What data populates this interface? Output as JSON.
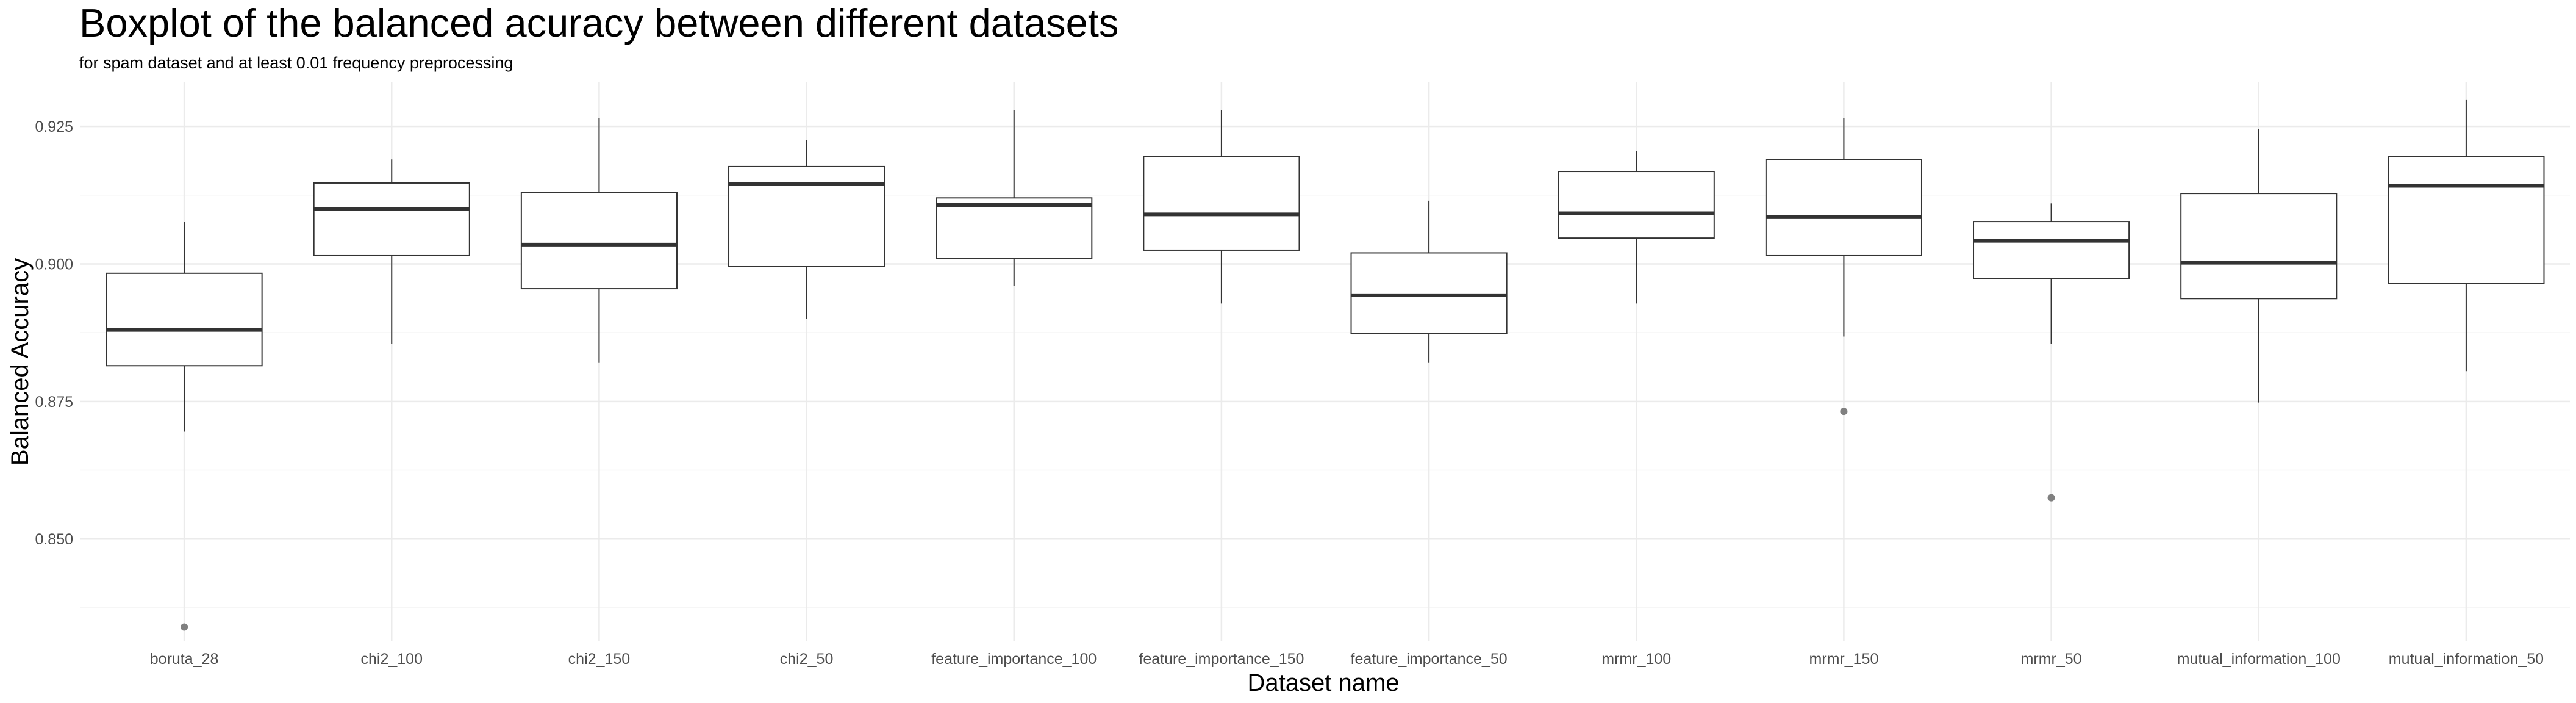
{
  "chart_data": {
    "type": "boxplot",
    "title": "Boxplot of the balanced acuracy between different datasets",
    "subtitle": "for spam dataset and at least 0.01 frequency preprocessing",
    "xlabel": "Dataset name",
    "ylabel": "Balanced Accuracy",
    "ylim": [
      0.8315,
      0.933
    ],
    "y_ticks": [
      0.85,
      0.875,
      0.9,
      0.925
    ],
    "y_tick_labels": [
      "0.850",
      "0.875",
      "0.900",
      "0.925"
    ],
    "grid": true,
    "categories": [
      "boruta_28",
      "chi2_100",
      "chi2_150",
      "chi2_50",
      "feature_importance_100",
      "feature_importance_150",
      "feature_importance_50",
      "mrmr_100",
      "mrmr_150",
      "mrmr_50",
      "mutual_information_100",
      "mutual_information_50"
    ],
    "boxes": [
      {
        "min": 0.8695,
        "q1": 0.8815,
        "median": 0.888,
        "q3": 0.8983,
        "max": 0.9077,
        "outliers": [
          0.834
        ]
      },
      {
        "min": 0.8855,
        "q1": 0.9015,
        "median": 0.91,
        "q3": 0.9147,
        "max": 0.919,
        "outliers": []
      },
      {
        "min": 0.882,
        "q1": 0.8955,
        "median": 0.9035,
        "q3": 0.913,
        "max": 0.9265,
        "outliers": []
      },
      {
        "min": 0.89,
        "q1": 0.8995,
        "median": 0.9145,
        "q3": 0.9177,
        "max": 0.9225,
        "outliers": []
      },
      {
        "min": 0.896,
        "q1": 0.901,
        "median": 0.9107,
        "q3": 0.912,
        "max": 0.928,
        "outliers": []
      },
      {
        "min": 0.8928,
        "q1": 0.9025,
        "median": 0.909,
        "q3": 0.9195,
        "max": 0.928,
        "outliers": []
      },
      {
        "min": 0.882,
        "q1": 0.8873,
        "median": 0.8943,
        "q3": 0.902,
        "max": 0.9115,
        "outliers": []
      },
      {
        "min": 0.8928,
        "q1": 0.9047,
        "median": 0.9092,
        "q3": 0.9168,
        "max": 0.9205,
        "outliers": []
      },
      {
        "min": 0.8868,
        "q1": 0.9015,
        "median": 0.9085,
        "q3": 0.919,
        "max": 0.9265,
        "outliers": [
          0.8732
        ]
      },
      {
        "min": 0.8855,
        "q1": 0.8973,
        "median": 0.9042,
        "q3": 0.9077,
        "max": 0.911,
        "outliers": [
          0.8575
        ]
      },
      {
        "min": 0.8748,
        "q1": 0.8937,
        "median": 0.9002,
        "q3": 0.9128,
        "max": 0.9245,
        "outliers": []
      },
      {
        "min": 0.8805,
        "q1": 0.8965,
        "median": 0.9142,
        "q3": 0.9195,
        "max": 0.9298,
        "outliers": []
      }
    ],
    "colors": {
      "box_fill": "#ffffff",
      "box_line": "#333333",
      "grid_major": "#ebebeb",
      "grid_minor": "#f4f4f4",
      "outlier": "#808080",
      "tick_text": "#4d4d4d"
    }
  }
}
